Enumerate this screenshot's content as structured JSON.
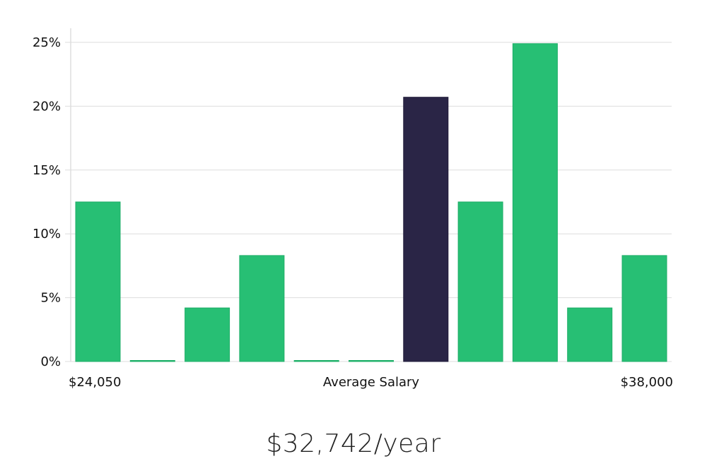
{
  "chart_data": {
    "type": "bar",
    "title": "",
    "xlabel": "Average Salary",
    "ylabel": "",
    "x_range_labels": {
      "min": "$24,050",
      "max": "$38,000"
    },
    "ylim": [
      0,
      26
    ],
    "yticks": [
      0,
      5,
      10,
      15,
      20,
      25
    ],
    "ytick_labels": [
      "0%",
      "5%",
      "10%",
      "15%",
      "20%",
      "25%"
    ],
    "values": [
      12.5,
      0,
      4.2,
      8.3,
      0,
      0,
      20.7,
      12.5,
      24.9,
      4.2,
      8.3
    ],
    "highlight_index": 6,
    "grid": true,
    "colors": {
      "bar": "#27bf74",
      "bar_edge": "#1fae68",
      "highlight": "#2a2546",
      "grid": "#dddddd",
      "axis": "#cccccc"
    }
  },
  "salary_text": "$32,742/year"
}
